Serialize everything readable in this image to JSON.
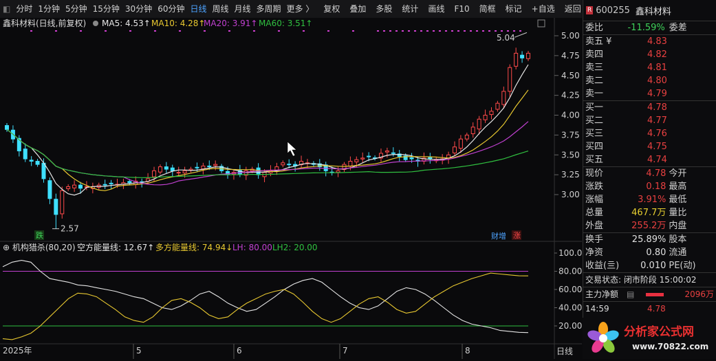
{
  "toolbar": {
    "period_tabs": [
      "分时",
      "1分钟",
      "5分钟",
      "15分钟",
      "30分钟",
      "60分钟",
      "日线",
      "周线",
      "月线",
      "多周期",
      "更多 〉"
    ],
    "active_tab": "日线",
    "tools": [
      "复权",
      "叠加",
      "多股",
      "统计",
      "画线",
      "F10",
      "简框",
      "标记",
      "+自选",
      "返回"
    ]
  },
  "main_chart": {
    "title": "鑫科材料(日线,前复权)",
    "ma": [
      {
        "label": "MA5: 4.53",
        "color": "#e6e6e6"
      },
      {
        "label": "MA10: 4.28",
        "color": "#e8c830"
      },
      {
        "label": "MA20: 3.91",
        "color": "#c040d0"
      },
      {
        "label": "MA60: 3.51",
        "color": "#30c040"
      }
    ],
    "price_ticks": [
      "5.00",
      "4.75",
      "4.50",
      "4.25",
      "4.00",
      "3.75",
      "3.50",
      "3.25",
      "3.00"
    ],
    "high_label": "5.04",
    "low_label": "2.57",
    "badge_die": "跌",
    "badge_caizeng": "财增",
    "badge_zhang": "涨"
  },
  "indicator": {
    "title": "机构猎杀(80,20)",
    "short_label": "空方能量线: 12.67",
    "long_label": "多方能量线: 74.94",
    "lh_label": "LH: 80.00",
    "lh2_label": "LH2: 20.00",
    "ticks": [
      "100.0",
      "80.00",
      "60.00",
      "40.00",
      "20.00"
    ]
  },
  "x_axis": {
    "labels": [
      "2025年",
      "5",
      "6",
      "7",
      "8"
    ],
    "corner": "日线"
  },
  "chart_data": {
    "type": "candlestick",
    "y_range": [
      2.5,
      5.1
    ],
    "high": 5.04,
    "low": 2.57,
    "ma_last": {
      "MA5": 4.53,
      "MA10": 4.28,
      "MA20": 3.91,
      "MA60": 3.51
    },
    "indicator_last": {
      "short": 12.67,
      "long": 74.94,
      "LH": 80,
      "LH2": 20
    }
  },
  "quote": {
    "code": "600255",
    "name": "鑫科材料",
    "badge": "R",
    "weibi_label": "委比",
    "weibi": "-11.59%",
    "weicha_label": "委差",
    "sell": [
      {
        "label": "卖五 ¥",
        "price": "4.83"
      },
      {
        "label": "卖四",
        "price": "4.82"
      },
      {
        "label": "卖三",
        "price": "4.81"
      },
      {
        "label": "卖二",
        "price": "4.80"
      },
      {
        "label": "卖一",
        "price": "4.79"
      }
    ],
    "buy": [
      {
        "label": "买一",
        "price": "4.78"
      },
      {
        "label": "买二",
        "price": "4.77"
      },
      {
        "label": "买三",
        "price": "4.76"
      },
      {
        "label": "买四",
        "price": "4.75"
      },
      {
        "label": "买五",
        "price": "4.74"
      }
    ],
    "stats": [
      {
        "k": "现价",
        "v": "4.78",
        "k2": "今开"
      },
      {
        "k": "涨跌",
        "v": "0.18",
        "k2": "最高"
      },
      {
        "k": "涨幅",
        "v": "3.91%",
        "k2": "最低"
      },
      {
        "k": "总量",
        "v": "467.7万",
        "k2": "量比"
      },
      {
        "k": "外盘",
        "v": "255.2万",
        "k2": "内盘"
      }
    ],
    "stats2": [
      {
        "k": "换手",
        "v": "25.89%",
        "k2": "股本"
      },
      {
        "k": "净资",
        "v": "0.80",
        "k2": "流通"
      },
      {
        "k": "收益(亖)",
        "v": "0.010",
        "k2": "PE(动)"
      }
    ],
    "trade_status": "交易状态: 闭市阶段 15:00:02",
    "main_net_label": "主力净额",
    "main_net_value": "2096万",
    "last_time": "14:59",
    "last_price": "4.78"
  },
  "watermark": {
    "brand": "分析家公式网",
    "url": "www.70822.com"
  }
}
